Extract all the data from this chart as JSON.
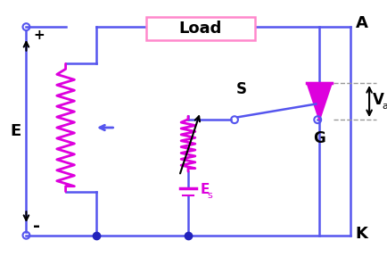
{
  "bg_color": "#ffffff",
  "wire_color": "#5555ee",
  "resistor_color": "#dd00dd",
  "text_color": "#000000",
  "node_color": "#2222bb",
  "load_box_color": "#ff88cc",
  "dashed_color": "#999999",
  "label_E": "E",
  "label_S": "S",
  "label_G": "G",
  "label_A": "A",
  "label_K": "K",
  "label_Va": "V",
  "label_Va_sub": "a",
  "label_Es": "E",
  "label_Es_sub": "s",
  "label_Load": "Load",
  "fig_w": 4.34,
  "fig_h": 2.88,
  "dpi": 100
}
